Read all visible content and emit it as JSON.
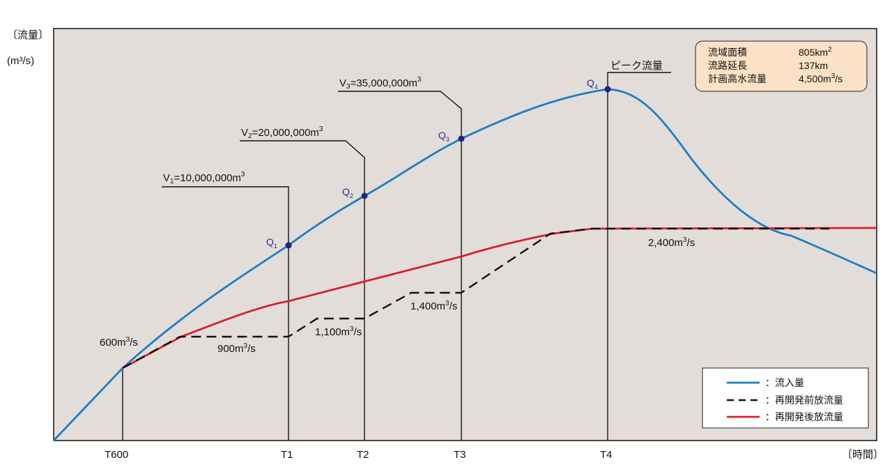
{
  "chart_data": {
    "type": "line",
    "y_axis_label": "〔流量〕",
    "y_axis_unit": "(m³/s)",
    "x_axis_label": "〔時間〕",
    "x_ticks": [
      "T600",
      "T1",
      "T2",
      "T3",
      "T4"
    ],
    "info_box": [
      {
        "label": "流域面積",
        "value": "805km²"
      },
      {
        "label": "流路延長",
        "value": "137km"
      },
      {
        "label": "計画高水流量",
        "value": "4,500m³/s"
      }
    ],
    "legend": [
      {
        "name": "：流入量",
        "color": "#1a7fc4",
        "style": "solid"
      },
      {
        "name": "：再開発前放流量",
        "color": "#000000",
        "style": "dashed"
      },
      {
        "name": "：再開発後放流量",
        "color": "#d9202a",
        "style": "solid"
      }
    ],
    "points": [
      {
        "label": "Q1",
        "sub": "1"
      },
      {
        "label": "Q2",
        "sub": "2"
      },
      {
        "label": "Q3",
        "sub": "3"
      },
      {
        "label": "Q4",
        "sub": "4"
      }
    ],
    "volume_labels": [
      "V₁=10,000,000m³",
      "V₂=20,000,000m³",
      "V₃=35,000,000m³"
    ],
    "peak_label": "ピーク流量",
    "flow_labels": [
      "600m³/s",
      "900m³/s",
      "1,100m³/s",
      "1,400m³/s",
      "2,400m³/s"
    ],
    "series_values": {
      "before_release_steps": [
        600,
        900,
        1100,
        1400,
        2400
      ],
      "after_release_final": 2400
    }
  }
}
